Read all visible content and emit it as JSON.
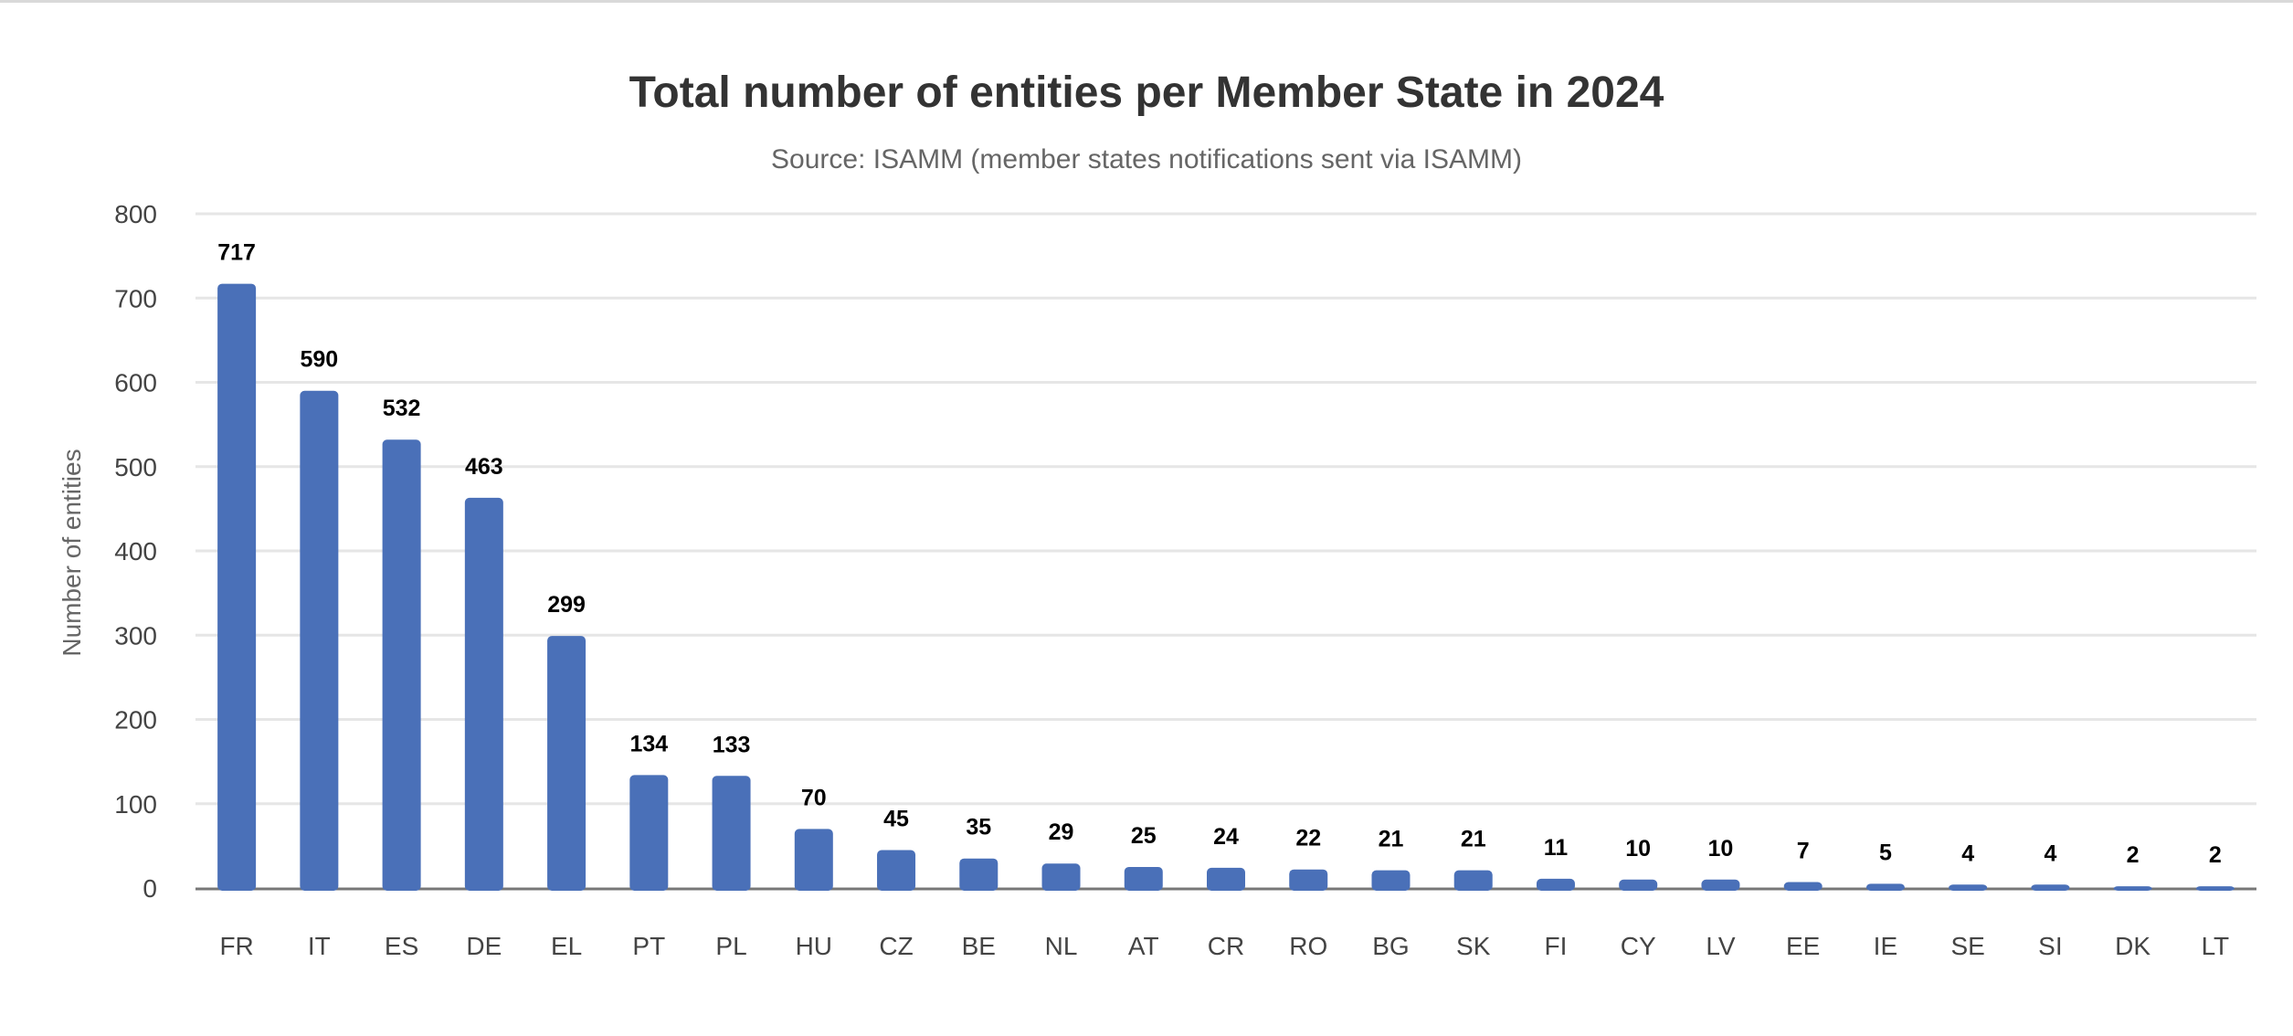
{
  "chart_data": {
    "type": "bar",
    "title": "Total number of entities per Member State in 2024",
    "subtitle": "Source: ISAMM (member states notifications sent via ISAMM)",
    "xlabel": "",
    "ylabel": "Number of entities",
    "ylim": [
      0,
      800
    ],
    "yticks": [
      0,
      100,
      200,
      300,
      400,
      500,
      600,
      700,
      800
    ],
    "grid": true,
    "bar_color": "#4a70b8",
    "categories": [
      "FR",
      "IT",
      "ES",
      "DE",
      "EL",
      "PT",
      "PL",
      "HU",
      "CZ",
      "BE",
      "NL",
      "AT",
      "CR",
      "RO",
      "BG",
      "SK",
      "FI",
      "CY",
      "LV",
      "EE",
      "IE",
      "SE",
      "SI",
      "DK",
      "LT"
    ],
    "values": [
      717,
      590,
      532,
      463,
      299,
      134,
      133,
      70,
      45,
      35,
      29,
      25,
      24,
      22,
      21,
      21,
      11,
      10,
      10,
      7,
      5,
      4,
      4,
      2,
      2
    ]
  }
}
